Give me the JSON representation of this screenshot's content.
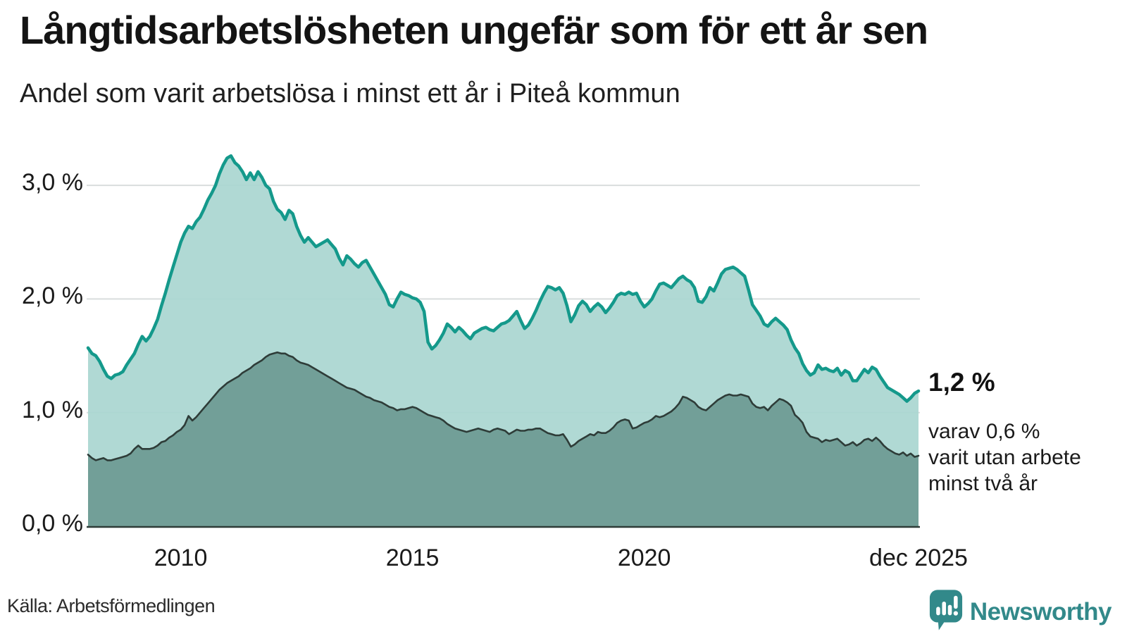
{
  "header": {
    "title": "Långtidsarbetslösheten ungefär som för ett år sen",
    "subtitle": "Andel som varit arbetslösa i minst ett år i Piteå kommun"
  },
  "chart_data": {
    "type": "area",
    "title": "Långtidsarbetslösheten ungefär som för ett år sen",
    "subtitle": "Andel som varit arbetslösa i minst ett år i Piteå kommun",
    "x_start_year": 2008,
    "x_step_months": 1,
    "x_span_years": 17.917,
    "y_axis": {
      "tick_labels": [
        "0,0 %",
        "1,0 %",
        "2,0 %",
        "3,0 %"
      ],
      "tick_values": [
        0,
        1,
        2,
        3
      ],
      "range": [
        0,
        3.3
      ],
      "grid": true
    },
    "x_axis": {
      "ticks": [
        {
          "label": "2010",
          "year": 2010
        },
        {
          "label": "2015",
          "year": 2015
        },
        {
          "label": "2020",
          "year": 2020
        },
        {
          "label": "dec 2025",
          "year": 2025.917
        }
      ]
    },
    "series": [
      {
        "name": "Andel som varit arbetslösa i minst ett år",
        "line_color": "#14998b",
        "fill_color": "#a9d6d0",
        "line_width": 4.5,
        "values": [
          1.57,
          1.52,
          1.5,
          1.45,
          1.38,
          1.32,
          1.3,
          1.33,
          1.34,
          1.36,
          1.42,
          1.47,
          1.52,
          1.6,
          1.67,
          1.63,
          1.67,
          1.74,
          1.82,
          1.94,
          2.05,
          2.17,
          2.28,
          2.39,
          2.5,
          2.58,
          2.64,
          2.62,
          2.68,
          2.72,
          2.79,
          2.87,
          2.93,
          3.0,
          3.1,
          3.18,
          3.24,
          3.26,
          3.2,
          3.17,
          3.12,
          3.05,
          3.11,
          3.05,
          3.12,
          3.07,
          3.0,
          2.97,
          2.86,
          2.79,
          2.76,
          2.7,
          2.78,
          2.75,
          2.64,
          2.56,
          2.5,
          2.54,
          2.5,
          2.46,
          2.48,
          2.5,
          2.52,
          2.48,
          2.44,
          2.36,
          2.3,
          2.38,
          2.35,
          2.31,
          2.28,
          2.32,
          2.34,
          2.28,
          2.22,
          2.16,
          2.1,
          2.04,
          1.95,
          1.93,
          2.0,
          2.06,
          2.04,
          2.03,
          2.01,
          2.0,
          1.97,
          1.89,
          1.62,
          1.56,
          1.59,
          1.64,
          1.7,
          1.78,
          1.75,
          1.71,
          1.75,
          1.72,
          1.68,
          1.65,
          1.7,
          1.72,
          1.74,
          1.75,
          1.73,
          1.72,
          1.75,
          1.78,
          1.79,
          1.81,
          1.85,
          1.89,
          1.81,
          1.74,
          1.77,
          1.83,
          1.9,
          1.98,
          2.05,
          2.11,
          2.1,
          2.08,
          2.1,
          2.05,
          1.94,
          1.8,
          1.86,
          1.94,
          1.98,
          1.95,
          1.89,
          1.93,
          1.96,
          1.93,
          1.88,
          1.92,
          1.97,
          2.03,
          2.05,
          2.04,
          2.06,
          2.04,
          2.05,
          1.98,
          1.93,
          1.96,
          2.0,
          2.07,
          2.13,
          2.14,
          2.12,
          2.1,
          2.14,
          2.18,
          2.2,
          2.17,
          2.15,
          2.1,
          1.98,
          1.97,
          2.02,
          2.1,
          2.07,
          2.14,
          2.22,
          2.26,
          2.27,
          2.28,
          2.26,
          2.23,
          2.2,
          2.08,
          1.95,
          1.9,
          1.85,
          1.78,
          1.76,
          1.8,
          1.83,
          1.8,
          1.77,
          1.73,
          1.64,
          1.57,
          1.52,
          1.43,
          1.37,
          1.33,
          1.35,
          1.42,
          1.38,
          1.39,
          1.37,
          1.36,
          1.39,
          1.33,
          1.37,
          1.35,
          1.28,
          1.28,
          1.33,
          1.38,
          1.35,
          1.4,
          1.38,
          1.32,
          1.27,
          1.22,
          1.2,
          1.18,
          1.16,
          1.13,
          1.1,
          1.13,
          1.17,
          1.19
        ]
      },
      {
        "name": "varav utan arbete minst två år",
        "line_color": "#2e3c38",
        "fill_color": "#6f9d96",
        "line_width": 2.6,
        "values": [
          0.63,
          0.6,
          0.58,
          0.59,
          0.6,
          0.58,
          0.58,
          0.59,
          0.6,
          0.61,
          0.62,
          0.64,
          0.68,
          0.71,
          0.68,
          0.68,
          0.68,
          0.69,
          0.71,
          0.74,
          0.75,
          0.78,
          0.8,
          0.83,
          0.85,
          0.89,
          0.97,
          0.93,
          0.96,
          1.0,
          1.04,
          1.08,
          1.12,
          1.16,
          1.2,
          1.23,
          1.26,
          1.28,
          1.3,
          1.32,
          1.35,
          1.37,
          1.39,
          1.42,
          1.44,
          1.46,
          1.49,
          1.51,
          1.52,
          1.53,
          1.52,
          1.52,
          1.5,
          1.49,
          1.46,
          1.44,
          1.43,
          1.42,
          1.4,
          1.38,
          1.36,
          1.34,
          1.32,
          1.3,
          1.28,
          1.26,
          1.24,
          1.22,
          1.21,
          1.2,
          1.18,
          1.16,
          1.14,
          1.13,
          1.11,
          1.1,
          1.09,
          1.07,
          1.05,
          1.04,
          1.02,
          1.03,
          1.03,
          1.04,
          1.05,
          1.04,
          1.02,
          1.0,
          0.98,
          0.97,
          0.96,
          0.95,
          0.93,
          0.9,
          0.88,
          0.86,
          0.85,
          0.84,
          0.83,
          0.84,
          0.85,
          0.86,
          0.85,
          0.84,
          0.83,
          0.85,
          0.86,
          0.85,
          0.84,
          0.81,
          0.83,
          0.85,
          0.84,
          0.84,
          0.85,
          0.85,
          0.86,
          0.86,
          0.84,
          0.82,
          0.81,
          0.8,
          0.8,
          0.81,
          0.76,
          0.7,
          0.72,
          0.75,
          0.77,
          0.79,
          0.81,
          0.8,
          0.83,
          0.82,
          0.82,
          0.84,
          0.87,
          0.91,
          0.93,
          0.94,
          0.93,
          0.86,
          0.87,
          0.89,
          0.91,
          0.92,
          0.94,
          0.97,
          0.96,
          0.97,
          0.99,
          1.01,
          1.04,
          1.08,
          1.14,
          1.13,
          1.11,
          1.09,
          1.05,
          1.03,
          1.02,
          1.05,
          1.08,
          1.11,
          1.13,
          1.15,
          1.16,
          1.15,
          1.15,
          1.16,
          1.15,
          1.14,
          1.08,
          1.05,
          1.04,
          1.05,
          1.02,
          1.06,
          1.09,
          1.12,
          1.11,
          1.09,
          1.06,
          0.98,
          0.95,
          0.91,
          0.83,
          0.79,
          0.78,
          0.77,
          0.74,
          0.76,
          0.75,
          0.76,
          0.77,
          0.74,
          0.71,
          0.72,
          0.74,
          0.71,
          0.73,
          0.76,
          0.77,
          0.75,
          0.78,
          0.75,
          0.71,
          0.68,
          0.66,
          0.64,
          0.63,
          0.65,
          0.62,
          0.64,
          0.61,
          0.62
        ]
      }
    ],
    "annotations": {
      "end_value_label": "1,2 %",
      "end_note_lines": [
        "varav 0,6 %",
        "varit utan arbete",
        "minst två år"
      ]
    }
  },
  "footer": {
    "source": "Källa: Arbetsförmedlingen",
    "brand": "Newsworthy"
  },
  "colors": {
    "line_1yr": "#14998b",
    "fill_1yr": "#a9d6d0",
    "line_2yr": "#2e3c38",
    "fill_2yr": "#6f9d96",
    "grid": "#d9dddd",
    "axis": "#2e3c38",
    "brand_teal": "#32898a",
    "text": "#141414"
  }
}
